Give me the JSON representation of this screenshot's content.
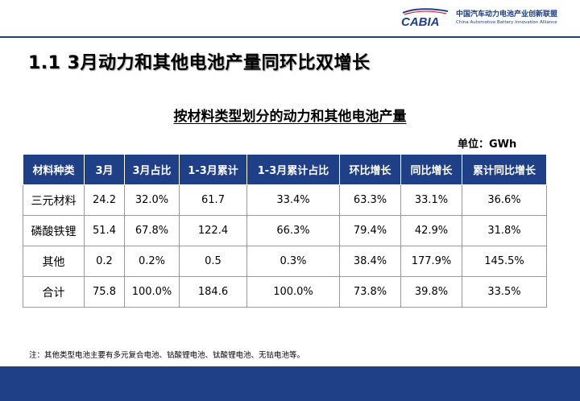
{
  "header": {
    "logo_text": "CABIA",
    "org_cn": "中国汽车动力电池产业创新联盟",
    "org_en": "China Automotive Battery Innovation Alliance",
    "colors": {
      "brand": "#1f3f86",
      "logo_red": "#d3232a"
    }
  },
  "title": "1.1  3月动力和其他电池产量同环比双增长",
  "table_title": "按材料类型划分的动力和其他电池产量",
  "unit": "单位：GWh",
  "table": {
    "headers": [
      "材料种类",
      "3月",
      "3月占比",
      "1-3月累计",
      "1-3月累计占比",
      "环比增长",
      "同比增长",
      "累计同比增长"
    ],
    "rows": [
      [
        "三元材料",
        "24.2",
        "32.0%",
        "61.7",
        "33.4%",
        "63.3%",
        "33.1%",
        "36.6%"
      ],
      [
        "磷酸铁锂",
        "51.4",
        "67.8%",
        "122.4",
        "66.3%",
        "79.4%",
        "42.9%",
        "31.8%"
      ],
      [
        "其他",
        "0.2",
        "0.2%",
        "0.5",
        "0.3%",
        "38.4%",
        "177.9%",
        "145.5%"
      ],
      [
        "合计",
        "75.8",
        "100.0%",
        "184.6",
        "100.0%",
        "73.8%",
        "39.8%",
        "33.5%"
      ]
    ]
  },
  "note": "注：其他类型电池主要有多元复合电池、钴酸锂电池、钛酸锂电池、无钴电池等。"
}
